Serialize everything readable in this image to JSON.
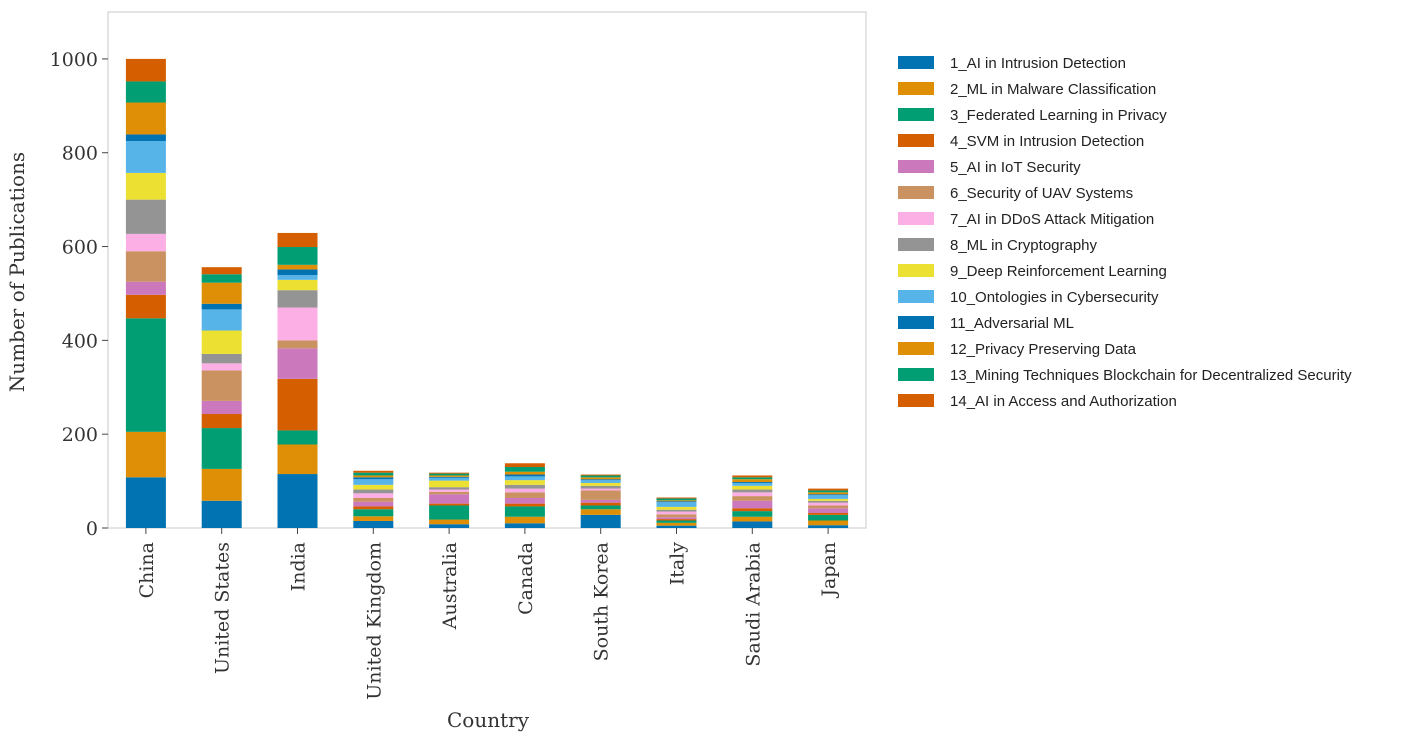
{
  "chart_data": {
    "type": "bar",
    "stacked": true,
    "title": "",
    "xlabel": "Country",
    "ylabel": "Number of Publications",
    "ylim": [
      0,
      1100
    ],
    "yticks": [
      0,
      200,
      400,
      600,
      800,
      1000
    ],
    "grid": false,
    "legend_position": "right",
    "categories": [
      "China",
      "United States",
      "India",
      "United Kingdom",
      "Australia",
      "Canada",
      "South Korea",
      "Italy",
      "Saudi Arabia",
      "Japan"
    ],
    "series": [
      {
        "name": "1_AI in Intrusion Detection",
        "color": "#0173b2",
        "values": [
          108,
          58,
          115,
          15,
          8,
          10,
          28,
          5,
          14,
          6
        ]
      },
      {
        "name": "2_ML in Malware Classification",
        "color": "#de8f05",
        "values": [
          97,
          68,
          63,
          10,
          10,
          14,
          12,
          6,
          10,
          10
        ]
      },
      {
        "name": "3_Federated Learning in Privacy",
        "color": "#029e73",
        "values": [
          242,
          87,
          30,
          15,
          30,
          22,
          8,
          5,
          12,
          12
        ]
      },
      {
        "name": "4_SVM in Intrusion Detection",
        "color": "#d55e00",
        "values": [
          50,
          30,
          110,
          6,
          4,
          6,
          6,
          3,
          6,
          4
        ]
      },
      {
        "name": "5_AI in IoT Security",
        "color": "#cc78bc",
        "values": [
          28,
          28,
          65,
          10,
          20,
          12,
          6,
          4,
          16,
          10
        ]
      },
      {
        "name": "6_Security of UAV Systems",
        "color": "#ca9161",
        "values": [
          65,
          65,
          17,
          8,
          5,
          12,
          20,
          6,
          10,
          6
        ]
      },
      {
        "name": "7_AI in DDoS Attack Mitigation",
        "color": "#fbafe4",
        "values": [
          37,
          15,
          70,
          10,
          5,
          8,
          4,
          6,
          8,
          6
        ]
      },
      {
        "name": "8_ML in Cryptography",
        "color": "#949494",
        "values": [
          73,
          20,
          37,
          8,
          5,
          8,
          6,
          4,
          6,
          4
        ]
      },
      {
        "name": "9_Deep Reinforcement Learning",
        "color": "#ece133",
        "values": [
          57,
          50,
          22,
          10,
          14,
          10,
          6,
          6,
          8,
          4
        ]
      },
      {
        "name": "10_Ontologies in Cybersecurity",
        "color": "#56b4e9",
        "values": [
          68,
          45,
          10,
          12,
          6,
          8,
          6,
          10,
          6,
          8
        ]
      },
      {
        "name": "11_Adversarial ML",
        "color": "#0173b2",
        "values": [
          14,
          12,
          12,
          4,
          2,
          4,
          2,
          2,
          2,
          2
        ]
      },
      {
        "name": "12_Privacy Preserving Data",
        "color": "#de8f05",
        "values": [
          68,
          45,
          10,
          4,
          3,
          6,
          4,
          2,
          6,
          4
        ]
      },
      {
        "name": "13_Mining Techniques Blockchain for Decentralized Security",
        "color": "#029e73",
        "values": [
          45,
          18,
          38,
          6,
          4,
          10,
          4,
          4,
          4,
          4
        ]
      },
      {
        "name": "14_AI in Access and Authorization",
        "color": "#d55e00",
        "values": [
          48,
          15,
          30,
          4,
          2,
          8,
          2,
          2,
          4,
          4
        ]
      }
    ]
  }
}
